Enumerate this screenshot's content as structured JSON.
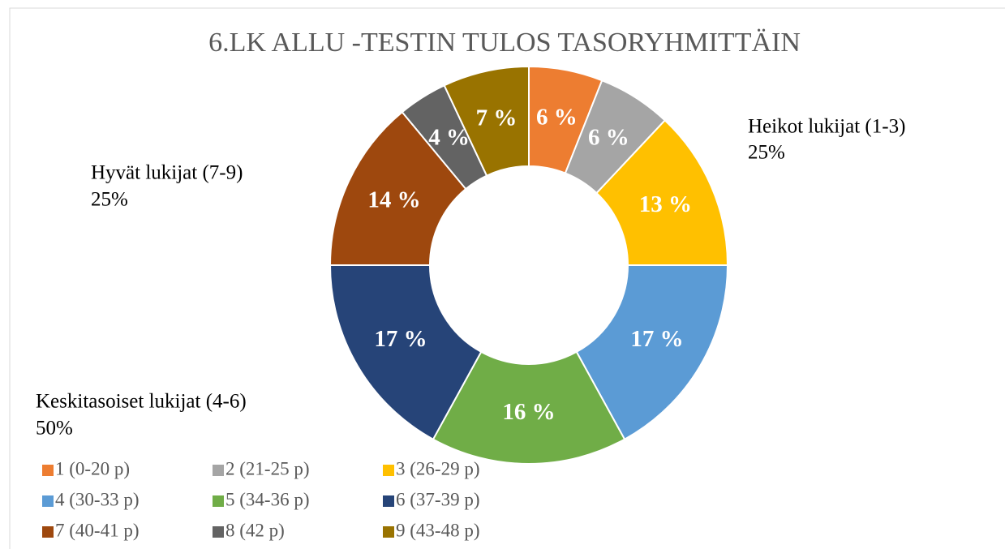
{
  "chart_data": {
    "type": "donut",
    "title": "6.LK ALLU -TESTIN TULOS TASORYHMITTÄIN",
    "categories": [
      "1 (0-20 p)",
      "2 (21-25 p)",
      "3 (26-29 p)",
      "4 (30-33 p)",
      "5 (34-36 p)",
      "6 (37-39 p)",
      "7 (40-41 p)",
      "8 (42 p)",
      "9 (43-48 p)"
    ],
    "values": [
      6,
      6,
      13,
      17,
      16,
      17,
      14,
      4,
      7
    ],
    "value_labels": [
      "6 %",
      "6 %",
      "13 %",
      "17 %",
      "16 %",
      "17 %",
      "14 %",
      "4 %",
      "7 %"
    ],
    "colors": [
      "#ED7D31",
      "#A5A5A5",
      "#FFC000",
      "#5B9BD5",
      "#70AD47",
      "#264478",
      "#9E480E",
      "#636363",
      "#997300"
    ],
    "annotations": [
      {
        "text": "Heikot lukijat (1-3)",
        "value_label": "25%"
      },
      {
        "text": "Hyvät lukijat (7-9)",
        "value_label": "25%"
      },
      {
        "text": "Keskitasoiset lukijat (4-6)",
        "value_label": "50%"
      }
    ],
    "legend": "bottom-left"
  }
}
